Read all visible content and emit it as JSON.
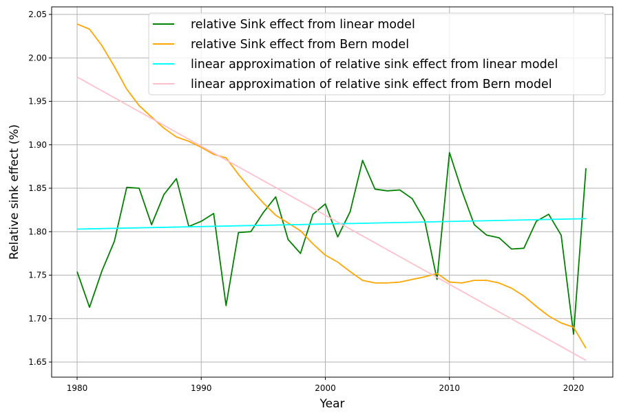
{
  "chart_data": {
    "type": "line",
    "title": "",
    "xlabel": "Year",
    "ylabel": "Relative sink effect (%)",
    "xlim": [
      1978,
      2023
    ],
    "ylim": [
      1.632,
      2.058
    ],
    "grid": true,
    "legend_position": "top-right",
    "xticks": [
      1980,
      1990,
      2000,
      2010,
      2020
    ],
    "xtick_labels": [
      "1980",
      "1990",
      "2000",
      "2010",
      "2020"
    ],
    "yticks": [
      1.65,
      1.7,
      1.75,
      1.8,
      1.85,
      1.9,
      1.95,
      2.0,
      2.05
    ],
    "ytick_labels": [
      "1.65",
      "1.70",
      "1.75",
      "1.80",
      "1.85",
      "1.90",
      "1.95",
      "2.00",
      "2.05"
    ],
    "x": [
      1980,
      1981,
      1982,
      1983,
      1984,
      1985,
      1986,
      1987,
      1988,
      1989,
      1990,
      1991,
      1992,
      1993,
      1994,
      1995,
      1996,
      1997,
      1998,
      1999,
      2000,
      2001,
      2002,
      2003,
      2004,
      2005,
      2006,
      2007,
      2008,
      2009,
      2010,
      2011,
      2012,
      2013,
      2014,
      2015,
      2016,
      2017,
      2018,
      2019,
      2020,
      2021
    ],
    "series": [
      {
        "name": "relative Sink effect from linear model",
        "color": "#008000",
        "values": [
          1.754,
          1.713,
          1.755,
          1.789,
          1.851,
          1.85,
          1.808,
          1.843,
          1.861,
          1.806,
          1.812,
          1.821,
          1.715,
          1.799,
          1.8,
          1.822,
          1.84,
          1.791,
          1.775,
          1.82,
          1.832,
          1.794,
          1.823,
          1.882,
          1.849,
          1.847,
          1.848,
          1.838,
          1.813,
          1.745,
          1.891,
          1.847,
          1.808,
          1.796,
          1.793,
          1.78,
          1.781,
          1.812,
          1.82,
          1.796,
          1.682,
          1.873
        ]
      },
      {
        "name": "relative Sink effect from Bern model",
        "color": "#FFA500",
        "values": [
          2.039,
          2.033,
          2.014,
          1.99,
          1.964,
          1.945,
          1.932,
          1.919,
          1.909,
          1.904,
          1.897,
          1.889,
          1.885,
          1.866,
          1.849,
          1.833,
          1.819,
          1.81,
          1.801,
          1.786,
          1.773,
          1.765,
          1.754,
          1.744,
          1.741,
          1.741,
          1.742,
          1.745,
          1.748,
          1.752,
          1.742,
          1.741,
          1.744,
          1.744,
          1.741,
          1.735,
          1.726,
          1.714,
          1.703,
          1.695,
          1.69,
          1.666
        ]
      },
      {
        "name": "linear approximation of relative sink effect from linear model",
        "color": "#00FFFF",
        "linear": true,
        "start": 1.803,
        "end": 1.815
      },
      {
        "name": "linear approximation of relative sink effect from Bern model",
        "color": "#FFC0CB",
        "linear": true,
        "start": 1.978,
        "end": 1.652
      }
    ]
  }
}
